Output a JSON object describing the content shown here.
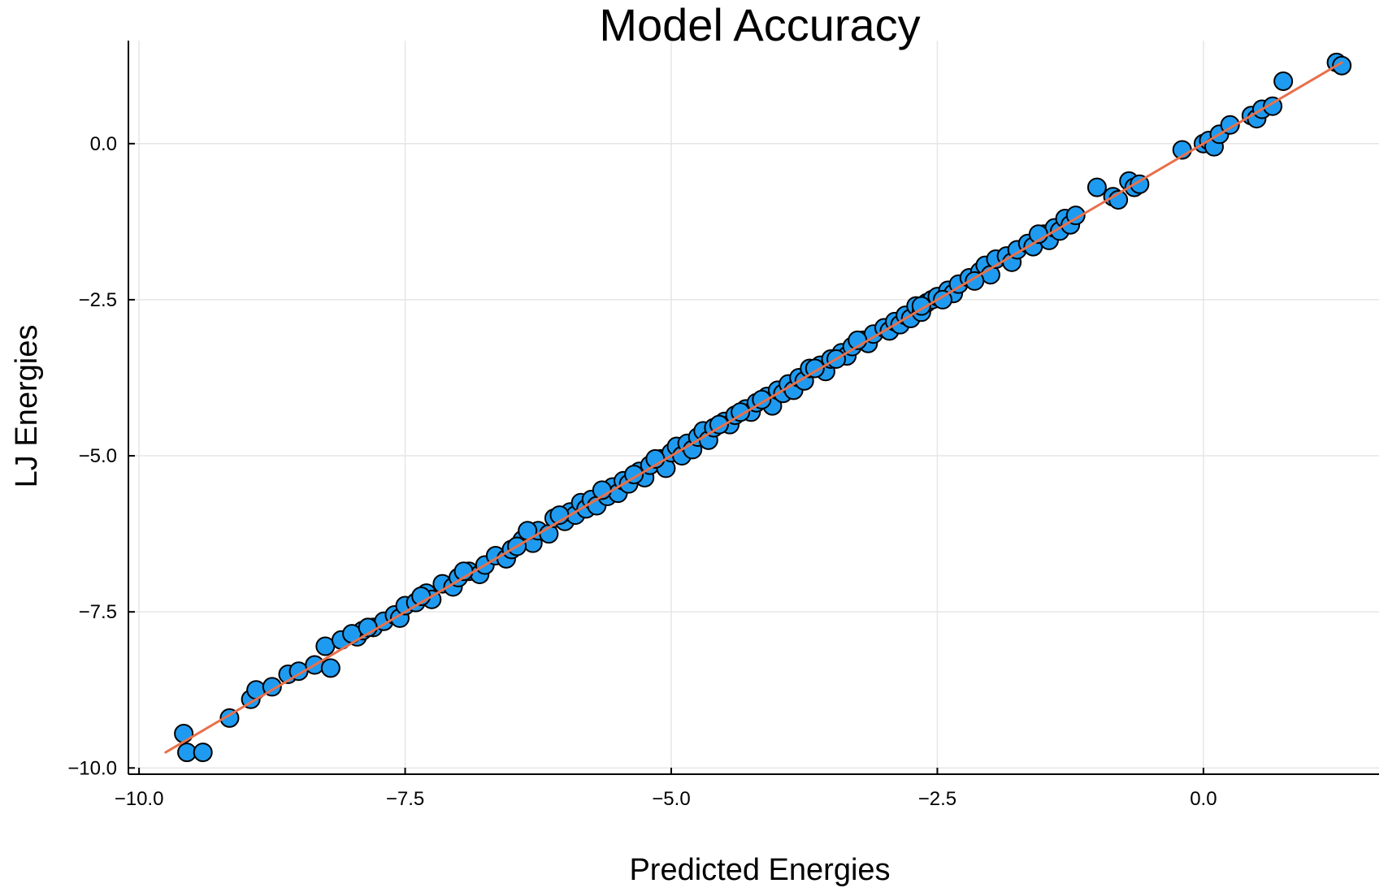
{
  "chart_data": {
    "type": "scatter",
    "title": "Model Accuracy",
    "xlabel": "Predicted Energies",
    "ylabel": "LJ Energies",
    "xlim": [
      -10.1,
      1.65
    ],
    "ylim": [
      -10.1,
      1.65
    ],
    "x_ticks": [
      -10.0,
      -7.5,
      -5.0,
      -2.5,
      0.0
    ],
    "y_ticks": [
      -10.0,
      -7.5,
      -5.0,
      -2.5,
      0.0
    ],
    "x_tick_labels": [
      "−10.0",
      "−7.5",
      "−5.0",
      "−2.5",
      "0.0"
    ],
    "y_tick_labels": [
      "−10.0",
      "−7.5",
      "−5.0",
      "−2.5",
      "0.0"
    ],
    "grid": true,
    "legend": "none",
    "colors": {
      "points": "#1e9bf0",
      "point_edge": "#000000",
      "fit_line": "#e8704b"
    },
    "fit_line": {
      "x": [
        -9.75,
        1.3
      ],
      "y": [
        -9.75,
        1.3
      ]
    },
    "series": [
      {
        "type": "scatter",
        "x": [
          -9.58,
          -9.55,
          -9.4,
          -9.15,
          -8.95,
          -8.9,
          -8.75,
          -8.6,
          -8.5,
          -8.35,
          -8.25,
          -8.2,
          -8.1,
          -7.95,
          -7.9,
          -7.8,
          -7.7,
          -7.6,
          -7.55,
          -7.5,
          -7.4,
          -7.3,
          -7.25,
          -7.15,
          -7.05,
          -7.0,
          -6.9,
          -6.8,
          -6.75,
          -6.65,
          -6.55,
          -6.5,
          -6.4,
          -6.3,
          -6.25,
          -6.15,
          -6.1,
          -6.0,
          -5.95,
          -5.9,
          -5.85,
          -5.8,
          -5.75,
          -5.7,
          -5.6,
          -5.55,
          -5.5,
          -5.45,
          -5.4,
          -5.3,
          -5.25,
          -5.2,
          -5.1,
          -5.05,
          -5.0,
          -4.95,
          -4.9,
          -4.85,
          -4.8,
          -4.75,
          -4.7,
          -4.65,
          -4.6,
          -4.5,
          -4.45,
          -4.4,
          -4.3,
          -4.25,
          -4.2,
          -4.1,
          -4.05,
          -4.0,
          -3.95,
          -3.9,
          -3.85,
          -3.8,
          -3.75,
          -3.7,
          -3.6,
          -3.55,
          -3.5,
          -3.4,
          -3.35,
          -3.3,
          -3.2,
          -3.15,
          -3.1,
          -3.0,
          -2.95,
          -2.9,
          -2.85,
          -2.8,
          -2.75,
          -2.7,
          -2.65,
          -2.6,
          -2.55,
          -2.5,
          -2.4,
          -2.35,
          -2.3,
          -2.2,
          -2.1,
          -2.05,
          -2.0,
          -1.95,
          -1.85,
          -1.8,
          -1.75,
          -1.65,
          -1.6,
          -1.5,
          -1.45,
          -1.4,
          -1.35,
          -1.3,
          -1.25,
          -1.2,
          -1.0,
          -0.85,
          -0.8,
          -0.7,
          -0.65,
          -0.6,
          -0.2,
          0.0,
          0.05,
          0.1,
          0.15,
          0.25,
          0.45,
          0.5,
          0.55,
          0.65,
          0.75,
          1.25,
          1.3,
          -8.0,
          -7.85,
          -7.35,
          -6.95,
          -6.45,
          -6.05,
          -5.65,
          -5.15,
          -4.55,
          -4.15,
          -3.65,
          -3.25,
          -2.45,
          -2.15,
          -1.55,
          -6.35,
          -5.35,
          -4.35,
          -3.45,
          -2.65
        ],
        "y": [
          -9.45,
          -9.75,
          -9.75,
          -9.2,
          -8.9,
          -8.75,
          -8.7,
          -8.5,
          -8.45,
          -8.35,
          -8.05,
          -8.4,
          -7.95,
          -7.9,
          -7.8,
          -7.75,
          -7.65,
          -7.55,
          -7.6,
          -7.4,
          -7.35,
          -7.2,
          -7.3,
          -7.05,
          -7.1,
          -6.95,
          -6.85,
          -6.9,
          -6.75,
          -6.6,
          -6.65,
          -6.5,
          -6.35,
          -6.4,
          -6.2,
          -6.25,
          -6.0,
          -6.05,
          -5.9,
          -5.95,
          -5.75,
          -5.85,
          -5.7,
          -5.8,
          -5.65,
          -5.5,
          -5.6,
          -5.4,
          -5.45,
          -5.25,
          -5.35,
          -5.15,
          -5.05,
          -5.2,
          -4.95,
          -4.85,
          -5.0,
          -4.8,
          -4.9,
          -4.7,
          -4.6,
          -4.75,
          -4.55,
          -4.45,
          -4.5,
          -4.35,
          -4.25,
          -4.3,
          -4.15,
          -4.05,
          -4.2,
          -3.95,
          -4.0,
          -3.85,
          -3.95,
          -3.75,
          -3.8,
          -3.6,
          -3.55,
          -3.65,
          -3.45,
          -3.35,
          -3.4,
          -3.25,
          -3.15,
          -3.2,
          -3.05,
          -2.95,
          -3.0,
          -2.85,
          -2.9,
          -2.75,
          -2.8,
          -2.6,
          -2.7,
          -2.55,
          -2.5,
          -2.45,
          -2.35,
          -2.4,
          -2.25,
          -2.15,
          -2.05,
          -1.95,
          -2.1,
          -1.85,
          -1.8,
          -1.9,
          -1.7,
          -1.6,
          -1.65,
          -1.45,
          -1.55,
          -1.35,
          -1.4,
          -1.2,
          -1.3,
          -1.15,
          -0.7,
          -0.85,
          -0.9,
          -0.6,
          -0.7,
          -0.65,
          -0.1,
          0.0,
          0.05,
          -0.05,
          0.15,
          0.3,
          0.45,
          0.4,
          0.55,
          0.6,
          1.0,
          1.3,
          1.25,
          -7.85,
          -7.75,
          -7.25,
          -6.85,
          -6.45,
          -5.95,
          -5.55,
          -5.05,
          -4.5,
          -4.1,
          -3.6,
          -3.15,
          -2.5,
          -2.2,
          -1.45,
          -6.2,
          -5.3,
          -4.3,
          -3.45,
          -2.6
        ]
      }
    ]
  }
}
